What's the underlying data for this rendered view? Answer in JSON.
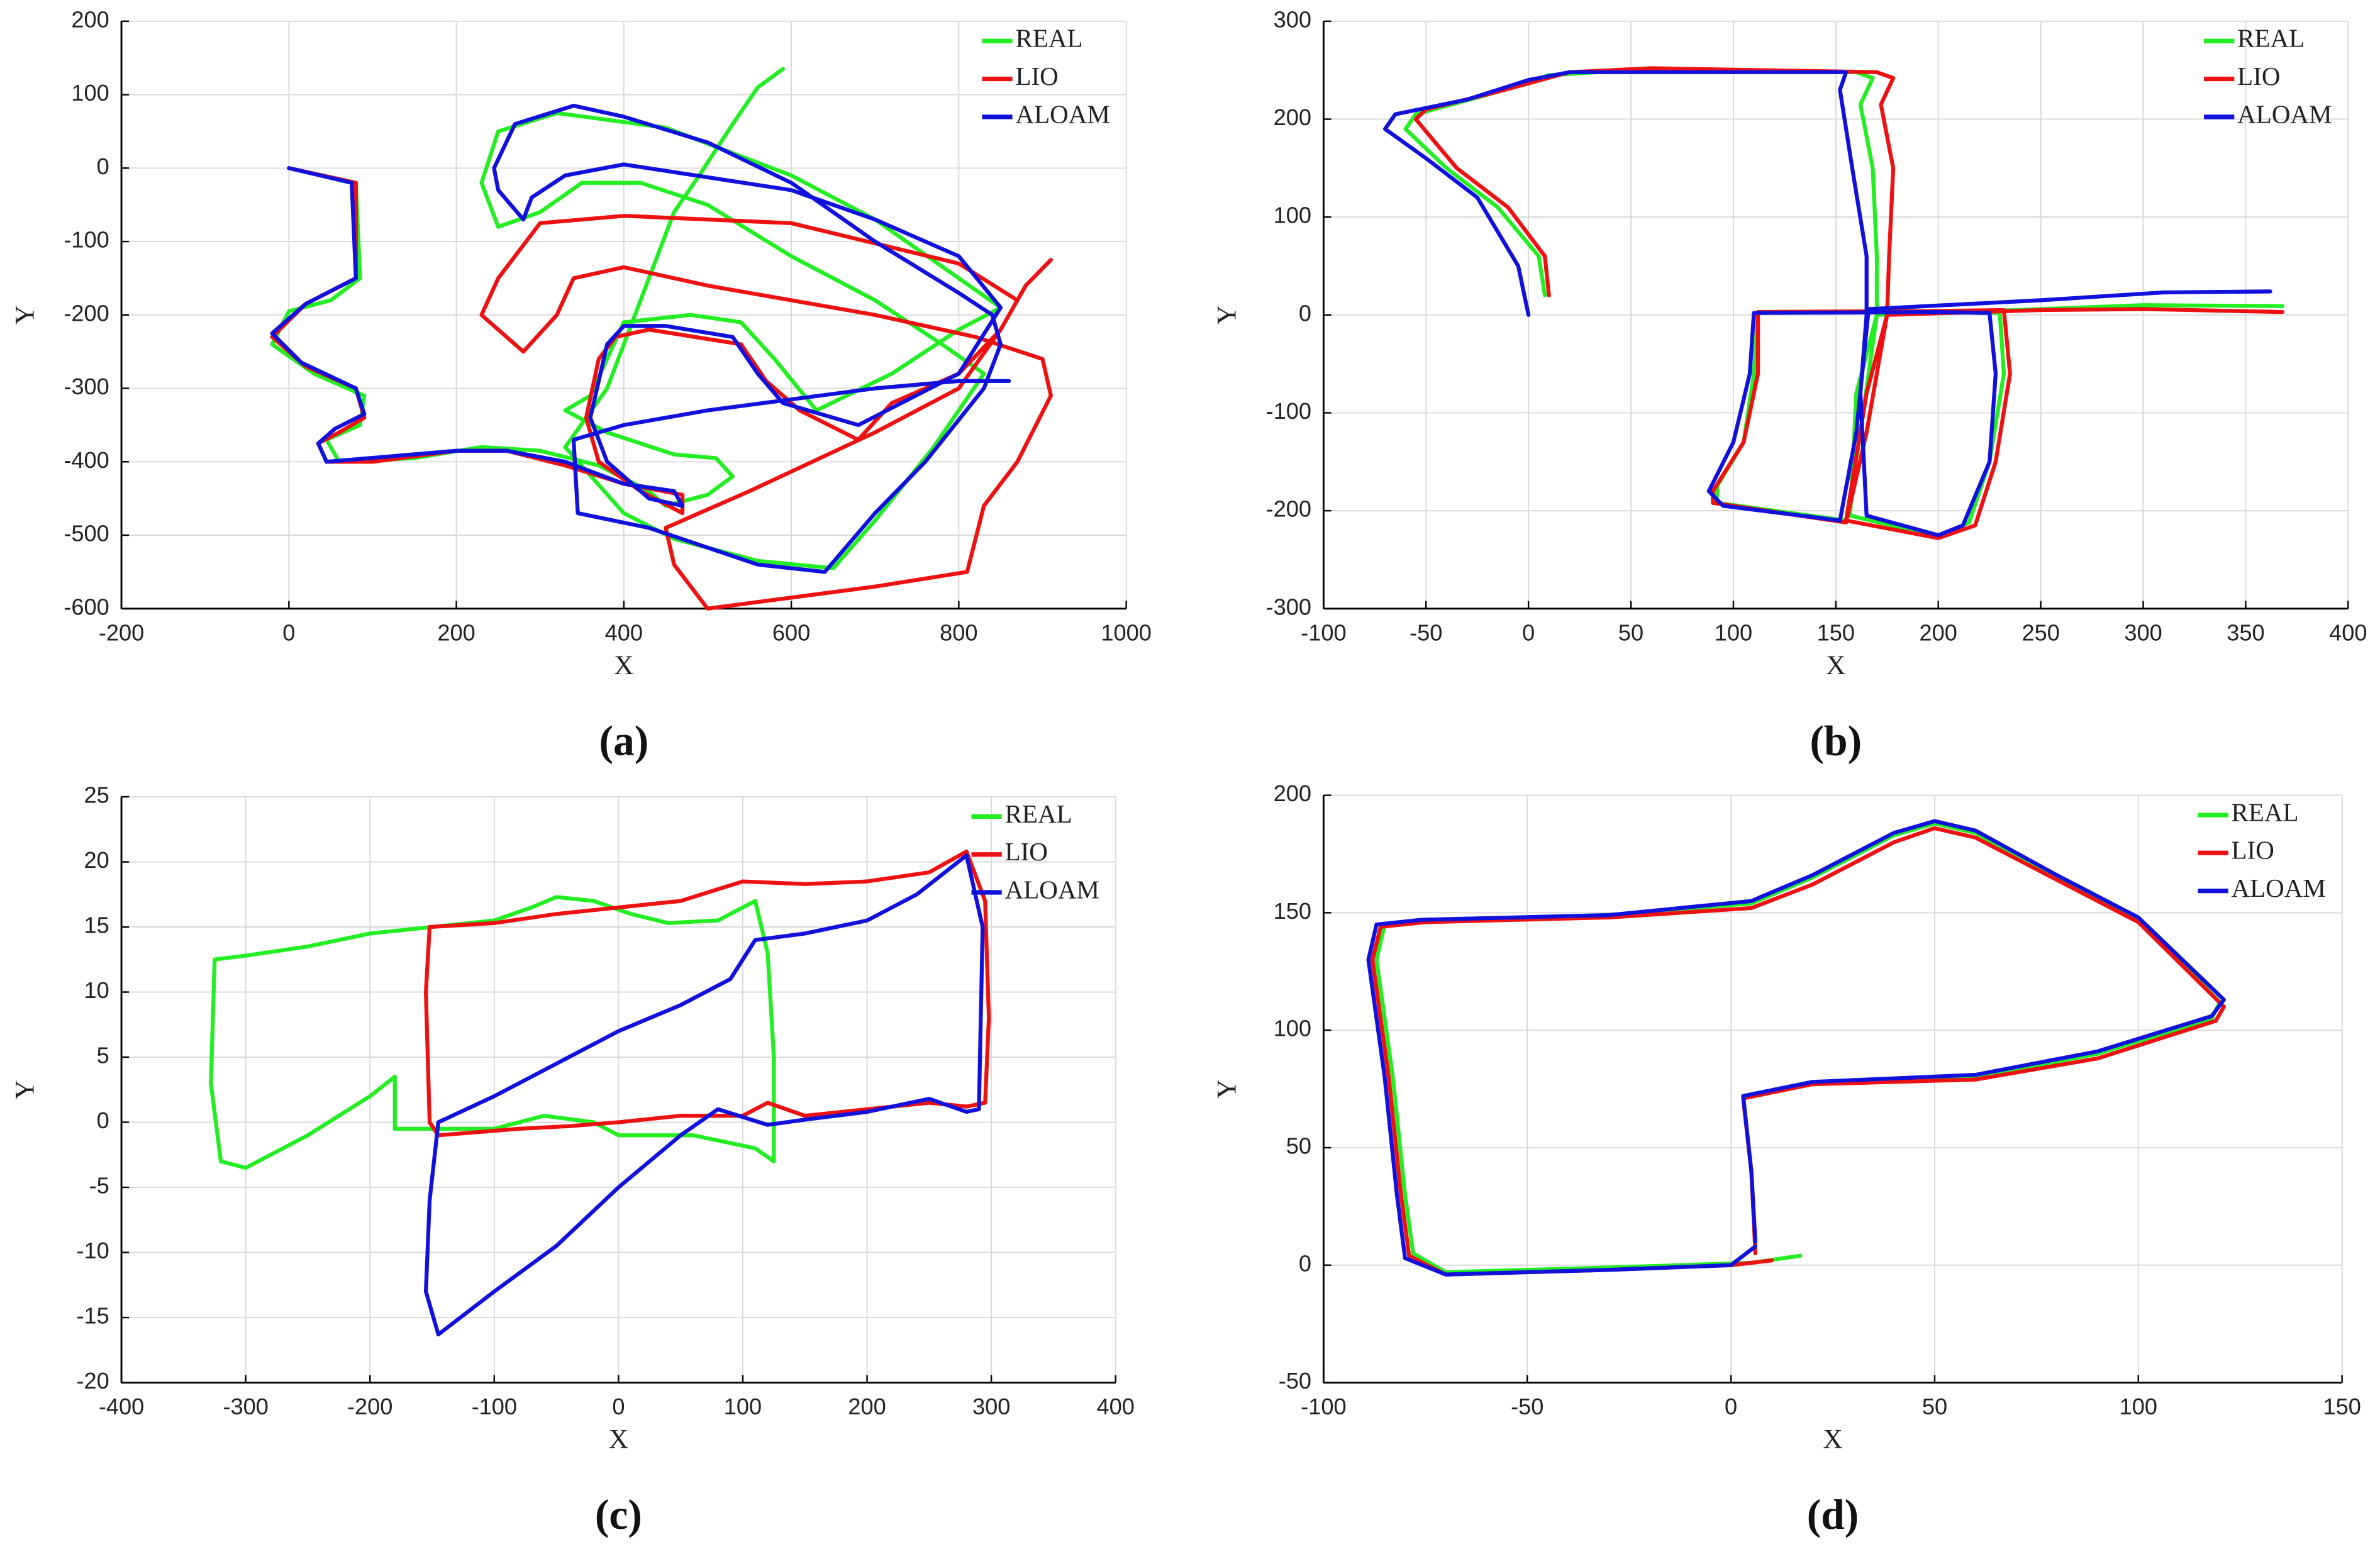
{
  "chart_data": [
    {
      "type": "line",
      "label": "(a)",
      "xlabel": "X",
      "ylabel": "Y",
      "grid": true,
      "legend": "upper right",
      "xlim": [
        -200,
        1000
      ],
      "ylim": [
        -600,
        200
      ],
      "xticks": [
        -200,
        0,
        200,
        400,
        600,
        800,
        1000
      ],
      "yticks": [
        -600,
        -500,
        -400,
        -300,
        -200,
        -100,
        0,
        100,
        200
      ],
      "series": [
        {
          "name": "REAL",
          "color": "#22ee22",
          "x": [
            0,
            80,
            85,
            50,
            0,
            -20,
            30,
            90,
            85,
            45,
            60,
            150,
            230,
            300,
            370,
            430,
            450,
            500,
            530,
            510,
            460,
            380,
            330,
            360,
            400,
            480,
            540,
            580,
            630,
            720,
            800,
            850,
            800,
            700,
            600,
            450,
            320,
            250,
            230,
            250,
            300,
            350,
            420,
            500,
            600,
            700,
            780,
            830,
            770,
            700,
            650,
            560,
            460,
            400,
            330,
            380,
            430,
            460,
            490,
            530,
            560,
            590
          ],
          "values": [
            0,
            -20,
            -150,
            -180,
            -195,
            -240,
            -280,
            -310,
            -350,
            -370,
            -400,
            -395,
            -380,
            -385,
            -405,
            -440,
            -460,
            -445,
            -420,
            -395,
            -390,
            -360,
            -330,
            -310,
            -210,
            -200,
            -210,
            -260,
            -330,
            -280,
            -220,
            -190,
            -150,
            -70,
            -10,
            55,
            75,
            50,
            -20,
            -80,
            -60,
            -20,
            -20,
            -50,
            -120,
            -180,
            -240,
            -280,
            -380,
            -480,
            -545,
            -535,
            -505,
            -470,
            -380,
            -300,
            -150,
            -60,
            -10,
            60,
            110,
            135
          ]
        },
        {
          "name": "LIO",
          "color": "#ee1111",
          "x": [
            0,
            80,
            80,
            20,
            -20,
            20,
            80,
            90,
            60,
            35,
            45,
            100,
            200,
            260,
            330,
            400,
            470,
            470,
            420,
            370,
            355,
            370,
            390,
            430,
            540,
            570,
            610,
            680,
            720,
            800,
            850,
            870,
            800,
            600,
            400,
            300,
            250,
            230,
            280,
            320,
            340,
            400,
            500,
            700,
            820,
            900,
            910,
            870,
            830,
            810,
            700,
            600,
            500,
            460,
            450,
            550,
            700,
            800,
            850,
            880,
            910
          ],
          "values": [
            0,
            -20,
            -150,
            -185,
            -230,
            -270,
            -300,
            -340,
            -360,
            -375,
            -400,
            -400,
            -385,
            -385,
            -405,
            -430,
            -445,
            -470,
            -440,
            -400,
            -340,
            -260,
            -230,
            -220,
            -240,
            -290,
            -330,
            -370,
            -320,
            -280,
            -220,
            -180,
            -130,
            -75,
            -65,
            -75,
            -150,
            -200,
            -250,
            -200,
            -150,
            -135,
            -160,
            -200,
            -230,
            -260,
            -310,
            -400,
            -460,
            -550,
            -570,
            -585,
            -600,
            -540,
            -490,
            -440,
            -360,
            -300,
            -220,
            -160,
            -125
          ]
        },
        {
          "name": "ALOAM",
          "color": "#1111dd",
          "x": [
            0,
            75,
            80,
            20,
            -20,
            15,
            80,
            90,
            55,
            35,
            45,
            200,
            260,
            330,
            400,
            460,
            470,
            430,
            380,
            360,
            380,
            400,
            450,
            530,
            560,
            590,
            680,
            800,
            850,
            800,
            700,
            600,
            400,
            330,
            290,
            280,
            250,
            245,
            270,
            340,
            400,
            500,
            600,
            700,
            800,
            840,
            850,
            830,
            760,
            700,
            640,
            560,
            430,
            345,
            340,
            400,
            500,
            700,
            800,
            860
          ],
          "values": [
            0,
            -20,
            -150,
            -185,
            -225,
            -265,
            -300,
            -335,
            -355,
            -375,
            -400,
            -385,
            -385,
            -400,
            -430,
            -440,
            -460,
            -450,
            -400,
            -340,
            -240,
            -215,
            -215,
            -230,
            -280,
            -320,
            -350,
            -280,
            -190,
            -120,
            -70,
            -30,
            5,
            -10,
            -40,
            -70,
            -30,
            0,
            60,
            85,
            70,
            35,
            -20,
            -100,
            -170,
            -200,
            -240,
            -300,
            -400,
            -470,
            -550,
            -540,
            -490,
            -470,
            -370,
            -350,
            -330,
            -300,
            -290,
            -290
          ]
        }
      ]
    },
    {
      "type": "line",
      "label": "(b)",
      "xlabel": "X",
      "ylabel": "Y",
      "grid": true,
      "legend": "upper right",
      "xlim": [
        -100,
        400
      ],
      "ylim": [
        -300,
        300
      ],
      "xticks": [
        -100,
        -50,
        0,
        50,
        100,
        150,
        200,
        250,
        300,
        350,
        400
      ],
      "yticks": [
        -300,
        -200,
        -100,
        0,
        100,
        200,
        300
      ],
      "series": [
        {
          "name": "REAL",
          "color": "#22ee22",
          "x": [
            8,
            5,
            -15,
            -40,
            -60,
            -55,
            -20,
            10,
            50,
            160,
            168,
            162,
            168,
            170,
            170,
            160,
            157,
            200,
            215,
            225,
            232,
            230,
            200,
            112,
            110,
            105,
            92,
            92,
            155,
            162,
            170,
            250,
            300,
            368
          ],
          "values": [
            20,
            60,
            110,
            150,
            190,
            205,
            225,
            245,
            250,
            248,
            242,
            215,
            150,
            60,
            0,
            -80,
            -205,
            -226,
            -212,
            -150,
            -60,
            2,
            4,
            3,
            -60,
            -130,
            -175,
            -192,
            -210,
            -120,
            0,
            6,
            10,
            9
          ]
        },
        {
          "name": "LIO",
          "color": "#ee1111",
          "x": [
            10,
            8,
            -10,
            -35,
            -55,
            -50,
            -15,
            20,
            60,
            170,
            178,
            172,
            178,
            176,
            175,
            165,
            155,
            200,
            218,
            228,
            235,
            232,
            200,
            112,
            112,
            105,
            90,
            90,
            155,
            165,
            175,
            250,
            300,
            368
          ],
          "values": [
            20,
            60,
            110,
            150,
            200,
            210,
            228,
            248,
            252,
            248,
            242,
            215,
            150,
            60,
            0,
            -80,
            -210,
            -228,
            -215,
            -150,
            -60,
            5,
            4,
            3,
            -60,
            -130,
            -180,
            -192,
            -212,
            -120,
            0,
            5,
            6,
            3
          ]
        },
        {
          "name": "ALOAM",
          "color": "#1111dd",
          "x": [
            0,
            -5,
            -25,
            -50,
            -70,
            -65,
            -30,
            0,
            20,
            155,
            152,
            158,
            165,
            165,
            162,
            165,
            200,
            212,
            225,
            228,
            225,
            200,
            110,
            108,
            100,
            88,
            95,
            152,
            160,
            166,
            250,
            310,
            362
          ],
          "values": [
            0,
            50,
            120,
            160,
            190,
            205,
            220,
            240,
            248,
            248,
            230,
            150,
            60,
            0,
            -80,
            -205,
            -225,
            -215,
            -150,
            -60,
            2,
            3,
            2,
            -60,
            -130,
            -180,
            -195,
            -210,
            -120,
            6,
            15,
            23,
            24
          ]
        }
      ]
    },
    {
      "type": "line",
      "label": "(c)",
      "xlabel": "X",
      "ylabel": "Y",
      "grid": true,
      "legend": "upper right",
      "xlim": [
        -400,
        400
      ],
      "ylim": [
        -20,
        25
      ],
      "xticks": [
        -400,
        -300,
        -200,
        -100,
        0,
        100,
        200,
        300,
        400
      ],
      "yticks": [
        -20,
        -15,
        -10,
        -5,
        0,
        5,
        10,
        15,
        20,
        25
      ],
      "series": [
        {
          "name": "REAL",
          "color": "#22ee22",
          "x": [
            125,
            110,
            60,
            20,
            0,
            -20,
            -60,
            -100,
            -150,
            -180,
            -180,
            -200,
            -250,
            -300,
            -320,
            -328,
            -325,
            -300,
            -250,
            -200,
            -150,
            -100,
            -70,
            -50,
            -20,
            10,
            40,
            80,
            110,
            120,
            125,
            125
          ],
          "values": [
            -3,
            -2,
            -1,
            -1,
            -1,
            0,
            0.5,
            -0.5,
            -0.5,
            -0.5,
            3.5,
            2,
            -1,
            -3.5,
            -3,
            3,
            12.5,
            12.8,
            13.5,
            14.5,
            15,
            15.5,
            16.5,
            17.3,
            17,
            16,
            15.3,
            15.5,
            17,
            13,
            5,
            -3
          ]
        },
        {
          "name": "LIO",
          "color": "#ee1111",
          "x": [
            280,
            250,
            200,
            150,
            120,
            100,
            50,
            0,
            -40,
            -80,
            -145,
            -152,
            -155,
            -152,
            -100,
            -50,
            0,
            50,
            100,
            150,
            200,
            250,
            280,
            295,
            298,
            295,
            280
          ],
          "values": [
            1.2,
            1.5,
            1,
            0.5,
            1.5,
            0.5,
            0.5,
            0,
            -0.3,
            -0.5,
            -1,
            0,
            10,
            15,
            15.3,
            16,
            16.5,
            17,
            18.5,
            18.3,
            18.5,
            19.2,
            20.8,
            17,
            8,
            1.5,
            1.2
          ]
        },
        {
          "name": "ALOAM",
          "color": "#1111dd",
          "x": [
            -145,
            -100,
            -50,
            0,
            50,
            90,
            110,
            150,
            200,
            240,
            280,
            293,
            290,
            280,
            250,
            200,
            150,
            120,
            80,
            50,
            0,
            -50,
            -100,
            -145,
            -155,
            -152,
            -145
          ],
          "values": [
            0,
            2,
            4.5,
            7,
            9,
            11,
            14,
            14.5,
            15.5,
            17.5,
            20.5,
            15,
            1,
            0.8,
            1.8,
            0.8,
            0.2,
            -0.2,
            1,
            -1,
            -5,
            -9.5,
            -13,
            -16.3,
            -13,
            -6,
            0
          ]
        }
      ]
    },
    {
      "type": "line",
      "label": "(d)",
      "xlabel": "X",
      "ylabel": "Y",
      "grid": true,
      "legend": "upper right",
      "xlim": [
        -100,
        150
      ],
      "ylim": [
        -50,
        200
      ],
      "xticks": [
        -100,
        -50,
        0,
        50,
        100,
        150
      ],
      "yticks": [
        -50,
        0,
        50,
        100,
        150,
        200
      ],
      "series": [
        {
          "name": "REAL",
          "color": "#22ee22",
          "x": [
            17,
            5,
            -30,
            -70,
            -78,
            -80,
            -83,
            -87,
            -85,
            -75,
            -30,
            5,
            20,
            40,
            50,
            60,
            80,
            100,
            120,
            118,
            90,
            60,
            20,
            3,
            5,
            6
          ],
          "values": [
            4,
            1,
            -1,
            -3,
            5,
            30,
            80,
            130,
            145,
            147,
            149,
            154,
            165,
            183,
            188,
            184,
            165,
            147,
            112,
            105,
            90,
            80,
            78,
            72,
            40,
            8
          ]
        },
        {
          "name": "LIO",
          "color": "#ee1111",
          "x": [
            10,
            0,
            -30,
            -70,
            -79,
            -81,
            -84,
            -88,
            -86,
            -75,
            -30,
            5,
            20,
            40,
            50,
            60,
            80,
            100,
            121,
            119,
            90,
            60,
            20,
            3,
            5,
            6
          ],
          "values": [
            2,
            0,
            -2,
            -4,
            4,
            30,
            80,
            130,
            144,
            146,
            148,
            152,
            162,
            180,
            186,
            182,
            164,
            146,
            110,
            104,
            88,
            79,
            77,
            71,
            40,
            5
          ]
        },
        {
          "name": "ALOAM",
          "color": "#1111dd",
          "x": [
            6,
            0,
            -30,
            -70,
            -80,
            -82,
            -85,
            -89,
            -87,
            -76,
            -30,
            5,
            20,
            40,
            50,
            60,
            80,
            100,
            121,
            118,
            90,
            60,
            20,
            3,
            5,
            6
          ],
          "values": [
            8,
            0,
            -2,
            -4,
            3,
            30,
            80,
            130,
            145,
            147,
            149,
            155,
            166,
            184,
            189,
            185,
            166,
            148,
            113,
            106,
            91,
            81,
            78,
            72,
            40,
            10
          ]
        }
      ]
    }
  ]
}
